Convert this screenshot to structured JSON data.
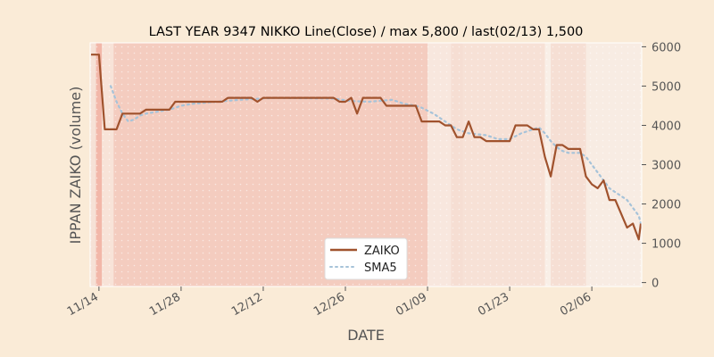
{
  "chart_data": {
    "type": "line",
    "title": "LAST YEAR 9347 NIKKO Line(Close) / max 5,800 / last(02/13) 1,500",
    "xlabel": "DATE",
    "ylabel": "IPPAN ZAIKO (volume)",
    "ylim": [
      -100,
      6100
    ],
    "yticks": [
      0,
      1000,
      2000,
      3000,
      4000,
      5000,
      6000
    ],
    "xlim": [
      -1.5,
      92.5
    ],
    "xticks": [
      {
        "label": "11/14",
        "x": 0
      },
      {
        "label": "11/28",
        "x": 14
      },
      {
        "label": "12/12",
        "x": 28
      },
      {
        "label": "12/26",
        "x": 42
      },
      {
        "label": "01/09",
        "x": 56
      },
      {
        "label": "01/23",
        "x": 70
      },
      {
        "label": "02/06",
        "x": 84
      }
    ],
    "x_axis_unit": "days since 11/14",
    "legend_position": "lower center",
    "series": [
      {
        "name": "ZAIKO",
        "color": "#a0522d",
        "style": "solid",
        "points": [
          [
            -2,
            5800
          ],
          [
            0,
            5800
          ],
          [
            1,
            3900
          ],
          [
            3,
            3900
          ],
          [
            4,
            4300
          ],
          [
            7,
            4300
          ],
          [
            8,
            4400
          ],
          [
            12,
            4400
          ],
          [
            13,
            4600
          ],
          [
            21,
            4600
          ],
          [
            22,
            4700
          ],
          [
            26,
            4700
          ],
          [
            27,
            4600
          ],
          [
            28,
            4700
          ],
          [
            40,
            4700
          ],
          [
            41,
            4600
          ],
          [
            42,
            4600
          ],
          [
            43,
            4700
          ],
          [
            44,
            4300
          ],
          [
            45,
            4700
          ],
          [
            48,
            4700
          ],
          [
            49,
            4500
          ],
          [
            54,
            4500
          ],
          [
            55,
            4100
          ],
          [
            58,
            4100
          ],
          [
            59,
            4000
          ],
          [
            60,
            4000
          ],
          [
            61,
            3700
          ],
          [
            62,
            3700
          ],
          [
            63,
            4100
          ],
          [
            64,
            3700
          ],
          [
            65,
            3700
          ],
          [
            66,
            3600
          ],
          [
            70,
            3600
          ],
          [
            71,
            4000
          ],
          [
            73,
            4000
          ],
          [
            74,
            3900
          ],
          [
            75,
            3900
          ],
          [
            76,
            3200
          ],
          [
            77,
            2700
          ],
          [
            78,
            3500
          ],
          [
            79,
            3500
          ],
          [
            80,
            3400
          ],
          [
            82,
            3400
          ],
          [
            83,
            2700
          ],
          [
            84,
            2500
          ],
          [
            85,
            2400
          ],
          [
            86,
            2600
          ],
          [
            87,
            2100
          ],
          [
            88,
            2100
          ],
          [
            90,
            1400
          ],
          [
            91,
            1500
          ],
          [
            92,
            1100
          ],
          [
            93,
            1500
          ]
        ]
      },
      {
        "name": "SMA5",
        "color": "#a6c3d9",
        "style": "dotted",
        "points": [
          [
            2,
            5000
          ],
          [
            3,
            4600
          ],
          [
            4,
            4300
          ],
          [
            5,
            4100
          ],
          [
            6,
            4150
          ],
          [
            7,
            4250
          ],
          [
            8,
            4300
          ],
          [
            10,
            4350
          ],
          [
            12,
            4400
          ],
          [
            14,
            4500
          ],
          [
            16,
            4550
          ],
          [
            20,
            4600
          ],
          [
            24,
            4650
          ],
          [
            30,
            4700
          ],
          [
            40,
            4680
          ],
          [
            43,
            4620
          ],
          [
            46,
            4600
          ],
          [
            50,
            4650
          ],
          [
            52,
            4550
          ],
          [
            54,
            4500
          ],
          [
            55,
            4450
          ],
          [
            57,
            4300
          ],
          [
            59,
            4100
          ],
          [
            61,
            3900
          ],
          [
            63,
            3800
          ],
          [
            66,
            3750
          ],
          [
            68,
            3650
          ],
          [
            70,
            3650
          ],
          [
            72,
            3800
          ],
          [
            74,
            3900
          ],
          [
            75,
            3950
          ],
          [
            76,
            3800
          ],
          [
            77,
            3600
          ],
          [
            78,
            3450
          ],
          [
            79,
            3350
          ],
          [
            80,
            3300
          ],
          [
            81,
            3300
          ],
          [
            82,
            3300
          ],
          [
            83,
            3200
          ],
          [
            84,
            3000
          ],
          [
            85,
            2800
          ],
          [
            86,
            2600
          ],
          [
            87,
            2400
          ],
          [
            88,
            2300
          ],
          [
            89,
            2200
          ],
          [
            90,
            2100
          ],
          [
            91,
            1900
          ],
          [
            92,
            1700
          ],
          [
            93,
            1500
          ]
        ]
      }
    ],
    "shaded_bands": [
      {
        "from": -1.5,
        "to": -0.5,
        "color": "#f3d6c8",
        "opacity": 0.6
      },
      {
        "from": -0.5,
        "to": 0.5,
        "color": "#f0a898",
        "opacity": 0.8
      },
      {
        "from": 0.5,
        "to": 2.5,
        "color": "#f6d8cc",
        "opacity": 0.6
      },
      {
        "from": 2.5,
        "to": 56.0,
        "color": "#f2c4b7",
        "opacity": 0.85
      },
      {
        "from": 56.0,
        "to": 60.0,
        "color": "#f6e0d6",
        "opacity": 0.6
      },
      {
        "from": 60.0,
        "to": 62.0,
        "color": "#f3d0c3",
        "opacity": 0.6
      },
      {
        "from": 62.0,
        "to": 76.0,
        "color": "#f5d9cd",
        "opacity": 0.7
      },
      {
        "from": 76.0,
        "to": 77.0,
        "color": "#f8ece4",
        "opacity": 0.6
      },
      {
        "from": 77.0,
        "to": 83.0,
        "color": "#f4d6ca",
        "opacity": 0.7
      },
      {
        "from": 83.0,
        "to": 92.5,
        "color": "#f6e8de",
        "opacity": 0.6
      }
    ]
  }
}
